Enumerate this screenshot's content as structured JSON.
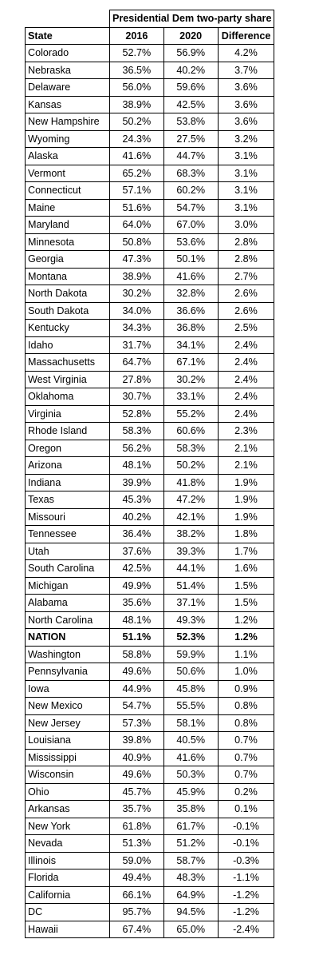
{
  "table": {
    "group_header": "Presidential Dem two-party share",
    "columns": [
      "State",
      "2016",
      "2020",
      "Difference"
    ],
    "rows": [
      {
        "state": "Colorado",
        "y2016": "52.7%",
        "y2020": "56.9%",
        "diff": "4.2%"
      },
      {
        "state": "Nebraska",
        "y2016": "36.5%",
        "y2020": "40.2%",
        "diff": "3.7%"
      },
      {
        "state": "Delaware",
        "y2016": "56.0%",
        "y2020": "59.6%",
        "diff": "3.6%"
      },
      {
        "state": "Kansas",
        "y2016": "38.9%",
        "y2020": "42.5%",
        "diff": "3.6%"
      },
      {
        "state": "New Hampshire",
        "y2016": "50.2%",
        "y2020": "53.8%",
        "diff": "3.6%"
      },
      {
        "state": "Wyoming",
        "y2016": "24.3%",
        "y2020": "27.5%",
        "diff": "3.2%"
      },
      {
        "state": "Alaska",
        "y2016": "41.6%",
        "y2020": "44.7%",
        "diff": "3.1%"
      },
      {
        "state": "Vermont",
        "y2016": "65.2%",
        "y2020": "68.3%",
        "diff": "3.1%"
      },
      {
        "state": "Connecticut",
        "y2016": "57.1%",
        "y2020": "60.2%",
        "diff": "3.1%"
      },
      {
        "state": "Maine",
        "y2016": "51.6%",
        "y2020": "54.7%",
        "diff": "3.1%"
      },
      {
        "state": "Maryland",
        "y2016": "64.0%",
        "y2020": "67.0%",
        "diff": "3.0%"
      },
      {
        "state": "Minnesota",
        "y2016": "50.8%",
        "y2020": "53.6%",
        "diff": "2.8%"
      },
      {
        "state": "Georgia",
        "y2016": "47.3%",
        "y2020": "50.1%",
        "diff": "2.8%"
      },
      {
        "state": "Montana",
        "y2016": "38.9%",
        "y2020": "41.6%",
        "diff": "2.7%"
      },
      {
        "state": "North Dakota",
        "y2016": "30.2%",
        "y2020": "32.8%",
        "diff": "2.6%"
      },
      {
        "state": "South Dakota",
        "y2016": "34.0%",
        "y2020": "36.6%",
        "diff": "2.6%"
      },
      {
        "state": "Kentucky",
        "y2016": "34.3%",
        "y2020": "36.8%",
        "diff": "2.5%"
      },
      {
        "state": "Idaho",
        "y2016": "31.7%",
        "y2020": "34.1%",
        "diff": "2.4%"
      },
      {
        "state": "Massachusetts",
        "y2016": "64.7%",
        "y2020": "67.1%",
        "diff": "2.4%"
      },
      {
        "state": "West Virginia",
        "y2016": "27.8%",
        "y2020": "30.2%",
        "diff": "2.4%"
      },
      {
        "state": "Oklahoma",
        "y2016": "30.7%",
        "y2020": "33.1%",
        "diff": "2.4%"
      },
      {
        "state": "Virginia",
        "y2016": "52.8%",
        "y2020": "55.2%",
        "diff": "2.4%"
      },
      {
        "state": "Rhode Island",
        "y2016": "58.3%",
        "y2020": "60.6%",
        "diff": "2.3%"
      },
      {
        "state": "Oregon",
        "y2016": "56.2%",
        "y2020": "58.3%",
        "diff": "2.1%"
      },
      {
        "state": "Arizona",
        "y2016": "48.1%",
        "y2020": "50.2%",
        "diff": "2.1%"
      },
      {
        "state": "Indiana",
        "y2016": "39.9%",
        "y2020": "41.8%",
        "diff": "1.9%"
      },
      {
        "state": "Texas",
        "y2016": "45.3%",
        "y2020": "47.2%",
        "diff": "1.9%"
      },
      {
        "state": "Missouri",
        "y2016": "40.2%",
        "y2020": "42.1%",
        "diff": "1.9%"
      },
      {
        "state": "Tennessee",
        "y2016": "36.4%",
        "y2020": "38.2%",
        "diff": "1.8%"
      },
      {
        "state": "Utah",
        "y2016": "37.6%",
        "y2020": "39.3%",
        "diff": "1.7%"
      },
      {
        "state": "South Carolina",
        "y2016": "42.5%",
        "y2020": "44.1%",
        "diff": "1.6%"
      },
      {
        "state": "Michigan",
        "y2016": "49.9%",
        "y2020": "51.4%",
        "diff": "1.5%"
      },
      {
        "state": "Alabama",
        "y2016": "35.6%",
        "y2020": "37.1%",
        "diff": "1.5%"
      },
      {
        "state": "North Carolina",
        "y2016": "48.1%",
        "y2020": "49.3%",
        "diff": "1.2%"
      },
      {
        "state": "NATION",
        "y2016": "51.1%",
        "y2020": "52.3%",
        "diff": "1.2%",
        "bold": true
      },
      {
        "state": "Washington",
        "y2016": "58.8%",
        "y2020": "59.9%",
        "diff": "1.1%"
      },
      {
        "state": "Pennsylvania",
        "y2016": "49.6%",
        "y2020": "50.6%",
        "diff": "1.0%"
      },
      {
        "state": "Iowa",
        "y2016": "44.9%",
        "y2020": "45.8%",
        "diff": "0.9%"
      },
      {
        "state": "New Mexico",
        "y2016": "54.7%",
        "y2020": "55.5%",
        "diff": "0.8%"
      },
      {
        "state": "New Jersey",
        "y2016": "57.3%",
        "y2020": "58.1%",
        "diff": "0.8%"
      },
      {
        "state": "Louisiana",
        "y2016": "39.8%",
        "y2020": "40.5%",
        "diff": "0.7%"
      },
      {
        "state": "Mississippi",
        "y2016": "40.9%",
        "y2020": "41.6%",
        "diff": "0.7%"
      },
      {
        "state": "Wisconsin",
        "y2016": "49.6%",
        "y2020": "50.3%",
        "diff": "0.7%"
      },
      {
        "state": "Ohio",
        "y2016": "45.7%",
        "y2020": "45.9%",
        "diff": "0.2%"
      },
      {
        "state": "Arkansas",
        "y2016": "35.7%",
        "y2020": "35.8%",
        "diff": "0.1%"
      },
      {
        "state": "New York",
        "y2016": "61.8%",
        "y2020": "61.7%",
        "diff": "-0.1%"
      },
      {
        "state": "Nevada",
        "y2016": "51.3%",
        "y2020": "51.2%",
        "diff": "-0.1%"
      },
      {
        "state": "Illinois",
        "y2016": "59.0%",
        "y2020": "58.7%",
        "diff": "-0.3%"
      },
      {
        "state": "Florida",
        "y2016": "49.4%",
        "y2020": "48.3%",
        "diff": "-1.1%"
      },
      {
        "state": "California",
        "y2016": "66.1%",
        "y2020": "64.9%",
        "diff": "-1.2%"
      },
      {
        "state": "DC",
        "y2016": "95.7%",
        "y2020": "94.5%",
        "diff": "-1.2%"
      },
      {
        "state": "Hawaii",
        "y2016": "67.4%",
        "y2020": "65.0%",
        "diff": "-2.4%"
      }
    ]
  }
}
